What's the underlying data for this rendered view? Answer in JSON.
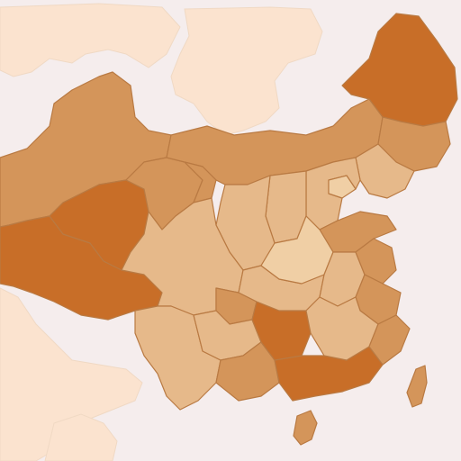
{
  "map": {
    "background_color": "#f5eded",
    "ocean_color": "#f5eded",
    "neighbor_color": "#fbe3cf",
    "border_color": "#b97a43",
    "fill_classes": {
      "dark": "#c86e28",
      "medium": "#d4955a",
      "light": "#e6b98a",
      "pale": "#f0cfa5"
    },
    "regions": [
      {
        "id": "xinjiang",
        "class": "medium"
      },
      {
        "id": "tibet",
        "class": "dark"
      },
      {
        "id": "qinghai",
        "class": "dark"
      },
      {
        "id": "gansu",
        "class": "medium"
      },
      {
        "id": "inner-mongolia",
        "class": "medium"
      },
      {
        "id": "heilongjiang",
        "class": "dark"
      },
      {
        "id": "jilin",
        "class": "medium"
      },
      {
        "id": "liaoning",
        "class": "light"
      },
      {
        "id": "hebei",
        "class": "light"
      },
      {
        "id": "beijing",
        "class": "pale"
      },
      {
        "id": "shandong",
        "class": "medium"
      },
      {
        "id": "shanxi",
        "class": "light"
      },
      {
        "id": "shaanxi",
        "class": "light"
      },
      {
        "id": "ningxia",
        "class": "medium"
      },
      {
        "id": "sichuan",
        "class": "light"
      },
      {
        "id": "chongqing",
        "class": "medium"
      },
      {
        "id": "yunnan",
        "class": "light"
      },
      {
        "id": "guizhou",
        "class": "light"
      },
      {
        "id": "guangxi",
        "class": "medium"
      },
      {
        "id": "guangdong",
        "class": "dark"
      },
      {
        "id": "hunan",
        "class": "dark"
      },
      {
        "id": "hubei",
        "class": "light"
      },
      {
        "id": "henan",
        "class": "pale"
      },
      {
        "id": "anhui",
        "class": "light"
      },
      {
        "id": "jiangsu",
        "class": "medium"
      },
      {
        "id": "zhejiang",
        "class": "medium"
      },
      {
        "id": "jiangxi",
        "class": "light"
      },
      {
        "id": "fujian",
        "class": "medium"
      },
      {
        "id": "hainan",
        "class": "medium"
      },
      {
        "id": "taiwan",
        "class": "medium"
      }
    ]
  }
}
